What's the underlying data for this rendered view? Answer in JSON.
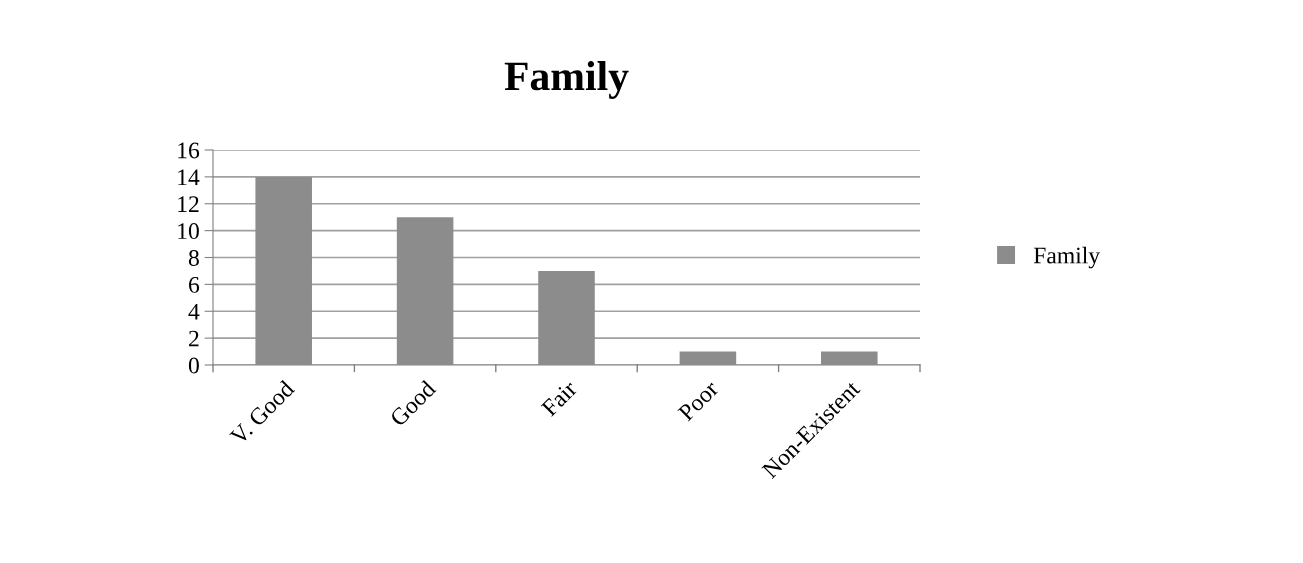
{
  "chart_data": {
    "type": "bar",
    "title": "Family",
    "categories": [
      "V. Good",
      "Good",
      "Fair",
      "Poor",
      "Non-Existent"
    ],
    "series": [
      {
        "name": "Family",
        "color": "#8c8c8c",
        "values": [
          14,
          11,
          7,
          1,
          1
        ]
      }
    ],
    "ylim": [
      0,
      16
    ],
    "yticks": [
      0,
      2,
      4,
      6,
      8,
      10,
      12,
      14,
      16
    ],
    "grid": "y",
    "legend": "right"
  }
}
